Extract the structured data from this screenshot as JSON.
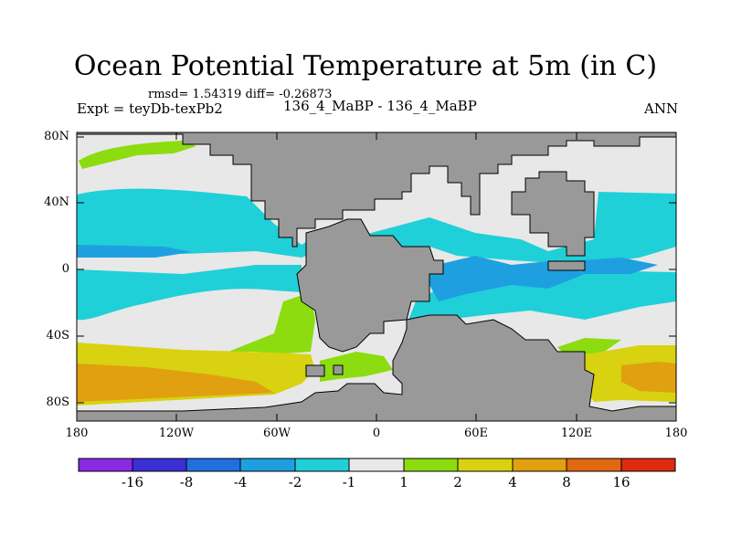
{
  "title": "Ocean Potential Temperature at 5m (in C)",
  "stats": "rmsd= 1.54319 diff= -0.26873",
  "experiment": "Expt = teyDb-texPb2",
  "comparison": "136_4_MaBP - 136_4_MaBP",
  "period": "ANN",
  "map": {
    "lat_ticks": [
      "80N",
      "40N",
      "0",
      "40S",
      "80S"
    ],
    "lon_ticks": [
      "180",
      "120W",
      "60W",
      "0",
      "60E",
      "120E",
      "180"
    ],
    "land_color": "#999999",
    "ocean_base_color": "#e8e8e8"
  },
  "colorbar": {
    "labels": [
      "-16",
      "-8",
      "-4",
      "-2",
      "-1",
      "1",
      "2",
      "4",
      "8",
      "16"
    ],
    "colors": [
      "#8a2be2",
      "#3b2fd6",
      "#1f6fe0",
      "#1ea0e0",
      "#20d0d8",
      "#e8e8e8",
      "#8cdc10",
      "#d8d210",
      "#e0a010",
      "#e06810",
      "#e02a10"
    ]
  }
}
